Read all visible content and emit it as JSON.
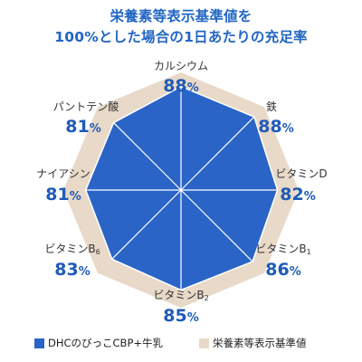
{
  "title": {
    "line1": "栄養素等表示基準値を",
    "line2": "100%とした場合の1日あたりの充足率"
  },
  "colors": {
    "series": "#2a64c7",
    "reference": "#e8d9c8",
    "label_value": "#1f5bb8",
    "title": "#2266c4"
  },
  "chart_data": {
    "type": "radar",
    "title": "栄養素等表示基準値を100%とした場合の1日あたりの充足率",
    "axes": [
      {
        "name": "カルシウム",
        "sub": "",
        "value": 88
      },
      {
        "name": "鉄",
        "sub": "",
        "value": 88
      },
      {
        "name": "ビタミンD",
        "sub": "",
        "value": 82
      },
      {
        "name": "ビタミンB",
        "sub": "1",
        "value": 86
      },
      {
        "name": "ビタミンB",
        "sub": "2",
        "value": 85
      },
      {
        "name": "ビタミンB",
        "sub": "6",
        "value": 83
      },
      {
        "name": "ナイアシン",
        "sub": "",
        "value": 81
      },
      {
        "name": "パントテン酸",
        "sub": "",
        "value": 81
      }
    ],
    "unit": "%",
    "range": [
      0,
      100
    ],
    "series": [
      {
        "name": "DHCのびっこCBP+牛乳",
        "type": "product"
      },
      {
        "name": "栄養素等表示基準値",
        "type": "reference",
        "value": 100
      }
    ],
    "legend_position": "bottom"
  }
}
